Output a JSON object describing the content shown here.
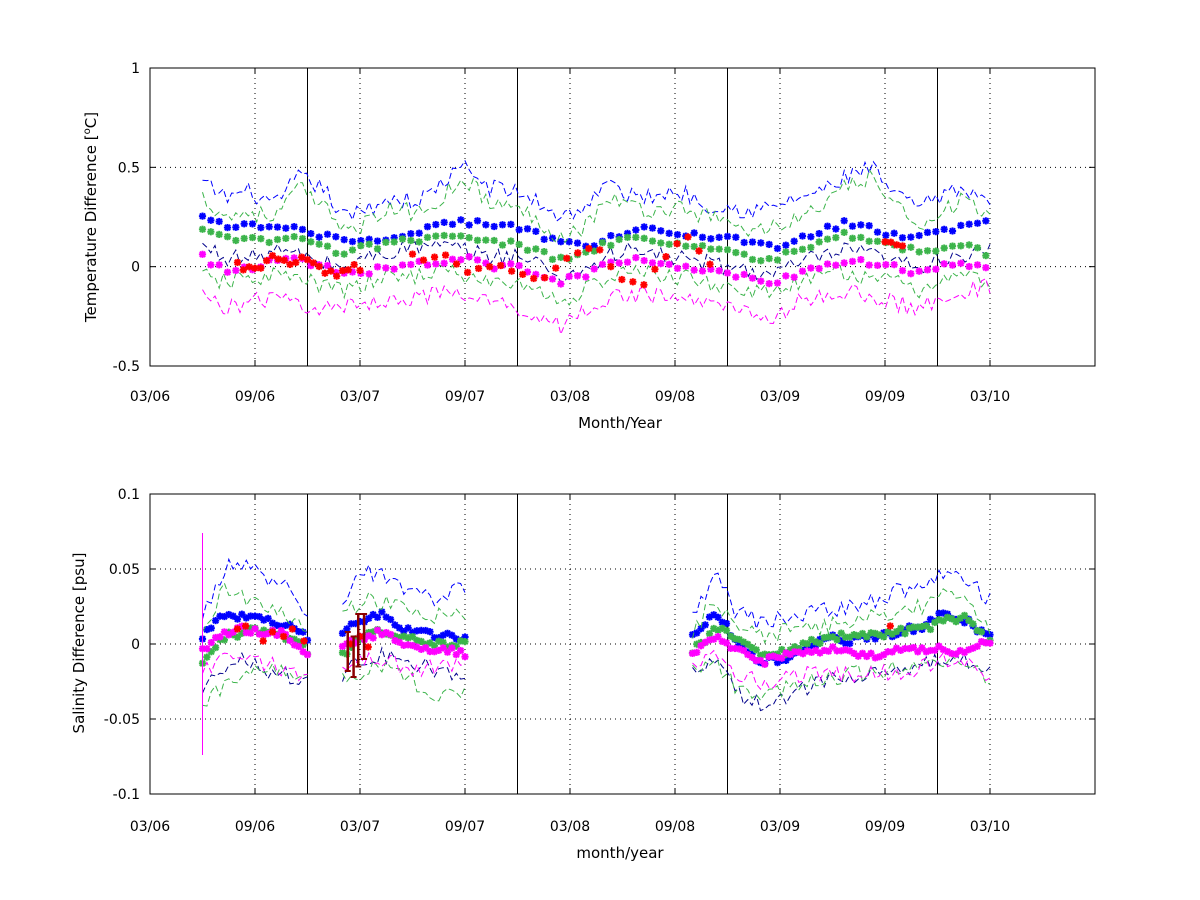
{
  "chart_data": [
    {
      "type": "scatter",
      "title": "",
      "xlabel": "Month/Year",
      "ylabel_parts": {
        "pre": "Temperature Difference [",
        "sup": "o",
        "post": "C]"
      },
      "xlim": [
        "2006-03",
        "2010-09"
      ],
      "ylim": [
        -0.5,
        1
      ],
      "xtick_labels": [
        "03/06",
        "09/06",
        "03/07",
        "09/07",
        "03/08",
        "09/08",
        "03/09",
        "09/09",
        "03/10"
      ],
      "ytick_labels": [
        "-0.5",
        "0",
        "0.5",
        "1"
      ],
      "grid": true,
      "year_dividers": [
        "2006-12",
        "2007-12",
        "2008-12",
        "2009-12"
      ],
      "x_start": "2006-06-01",
      "x_end": "2010-03-01",
      "series": [
        {
          "color": "#0000ff",
          "style": "markers",
          "values_anchor": [
            0.25,
            0.2,
            0.22,
            0.18,
            0.2,
            0.15,
            0.14,
            0.13,
            0.16,
            0.17,
            0.22,
            0.23,
            0.2,
            0.21,
            0.16,
            0.12,
            0.1,
            0.15,
            0.18,
            0.2,
            0.17,
            0.15,
            0.15,
            0.12,
            0.1,
            0.15,
            0.18,
            0.22,
            0.2,
            0.16,
            0.15,
            0.18,
            0.2,
            0.22
          ]
        },
        {
          "color": "#0000ff",
          "style": "dashed",
          "values_anchor": [
            0.42,
            0.35,
            0.38,
            0.3,
            0.45,
            0.4,
            0.24,
            0.3,
            0.35,
            0.32,
            0.42,
            0.5,
            0.4,
            0.38,
            0.33,
            0.25,
            0.3,
            0.42,
            0.35,
            0.36,
            0.38,
            0.32,
            0.3,
            0.28,
            0.3,
            0.35,
            0.38,
            0.45,
            0.5,
            0.36,
            0.3,
            0.35,
            0.4,
            0.32
          ]
        },
        {
          "color": "#00008b",
          "style": "dashed",
          "values_anchor": [
            0.1,
            0.05,
            0.04,
            0.08,
            0.06,
            0.02,
            0.0,
            0.05,
            0.08,
            0.1,
            0.1,
            0.08,
            0.05,
            0.06,
            0.02,
            -0.05,
            -0.02,
            0.06,
            0.08,
            0.06,
            0.04,
            0.02,
            0.0,
            -0.02,
            -0.04,
            0.02,
            0.05,
            0.08,
            0.06,
            0.02,
            0.0,
            0.05,
            0.06,
            0.08
          ]
        },
        {
          "color": "#3cb44b",
          "style": "markers",
          "values_anchor": [
            0.18,
            0.14,
            0.14,
            0.12,
            0.15,
            0.09,
            0.08,
            0.1,
            0.12,
            0.14,
            0.16,
            0.15,
            0.12,
            0.12,
            0.08,
            0.03,
            0.06,
            0.12,
            0.14,
            0.13,
            0.11,
            0.09,
            0.08,
            0.05,
            0.04,
            0.08,
            0.12,
            0.16,
            0.13,
            0.1,
            0.08,
            0.1,
            0.12,
            0.06
          ]
        },
        {
          "color": "#3cb44b",
          "style": "dashed",
          "values_anchor": [
            0.35,
            0.25,
            0.28,
            0.24,
            0.4,
            0.3,
            0.2,
            0.22,
            0.3,
            0.26,
            0.35,
            0.45,
            0.32,
            0.3,
            0.24,
            0.15,
            0.2,
            0.35,
            0.3,
            0.28,
            0.3,
            0.26,
            0.22,
            0.18,
            0.2,
            0.25,
            0.3,
            0.4,
            0.45,
            0.3,
            0.22,
            0.28,
            0.34,
            0.24
          ]
        },
        {
          "color": "#3cb44b",
          "style": "dashed",
          "values_anchor": [
            -0.05,
            -0.08,
            -0.06,
            -0.04,
            -0.06,
            -0.1,
            -0.12,
            -0.08,
            -0.05,
            -0.04,
            -0.02,
            -0.05,
            -0.08,
            -0.08,
            -0.12,
            -0.18,
            -0.12,
            -0.05,
            -0.03,
            -0.04,
            -0.05,
            -0.08,
            -0.1,
            -0.12,
            -0.14,
            -0.08,
            -0.05,
            -0.02,
            -0.06,
            -0.08,
            -0.12,
            -0.06,
            -0.05,
            -0.08
          ]
        },
        {
          "color": "#ff00ff",
          "style": "markers",
          "values_anchor": [
            0.05,
            -0.02,
            0.0,
            0.02,
            0.04,
            0.0,
            -0.04,
            -0.02,
            0.0,
            0.02,
            0.02,
            0.04,
            0.0,
            0.0,
            -0.04,
            -0.08,
            -0.04,
            0.02,
            0.03,
            0.02,
            0.0,
            -0.02,
            -0.04,
            -0.06,
            -0.08,
            -0.03,
            0.0,
            0.04,
            0.02,
            0.0,
            -0.04,
            0.0,
            0.02,
            0.0
          ]
        },
        {
          "color": "#ff00ff",
          "style": "dashed",
          "values_anchor": [
            -0.15,
            -0.2,
            -0.18,
            -0.16,
            -0.18,
            -0.22,
            -0.2,
            -0.18,
            -0.16,
            -0.15,
            -0.14,
            -0.15,
            -0.18,
            -0.2,
            -0.24,
            -0.3,
            -0.22,
            -0.16,
            -0.14,
            -0.15,
            -0.16,
            -0.18,
            -0.2,
            -0.22,
            -0.26,
            -0.18,
            -0.15,
            -0.12,
            -0.16,
            -0.18,
            -0.22,
            -0.14,
            -0.12,
            -0.1
          ]
        },
        {
          "color": "#ff0000",
          "style": "markers",
          "t_range": [
            "2006-08-01",
            "2007-03-01"
          ],
          "values_anchor": [
            0.0,
            -0.02,
            0.02,
            0.04,
            0.0,
            0.02,
            0.04,
            -0.02,
            -0.04,
            -0.02,
            0.0
          ]
        },
        {
          "color": "#ff0000",
          "style": "markers",
          "t_range": [
            "2007-06-01",
            "2008-11-01"
          ],
          "values_anchor": [
            0.04,
            0.06,
            0.0,
            -0.02,
            0.02,
            -0.06,
            -0.04,
            0.06,
            0.1,
            -0.06,
            -0.12,
            0.04,
            0.14,
            0.02
          ]
        },
        {
          "color": "#ff0000",
          "style": "markers",
          "t_range": [
            "2009-09-01",
            "2009-10-01"
          ],
          "values_anchor": [
            0.1,
            0.1
          ]
        }
      ]
    },
    {
      "type": "scatter",
      "title": "",
      "xlabel": "month/year",
      "ylabel": "Salinity Difference [psu]",
      "xlim": [
        "2006-03",
        "2010-09"
      ],
      "ylim": [
        -0.1,
        0.1
      ],
      "xtick_labels": [
        "03/06",
        "09/06",
        "03/07",
        "09/07",
        "03/08",
        "09/08",
        "03/09",
        "09/09",
        "03/10"
      ],
      "ytick_labels": [
        "-0.1",
        "-0.05",
        "0",
        "0.05",
        "0.1"
      ],
      "grid": true,
      "year_dividers": [
        "2006-12",
        "2007-12",
        "2008-12",
        "2009-12"
      ],
      "segments": [
        [
          "2006-06-01",
          "2006-12-01"
        ],
        [
          "2007-02-01",
          "2007-09-01"
        ],
        [
          "2008-10-01",
          "2010-03-01"
        ]
      ],
      "series": [
        {
          "color": "#0000ff",
          "style": "markers",
          "segment_values": [
            [
              0.005,
              0.02,
              0.018,
              0.015,
              0.012,
              0.005
            ],
            [
              0.008,
              0.015,
              0.02,
              0.01,
              0.008,
              0.005,
              0.004
            ],
            [
              0.005,
              0.022,
              0.0,
              -0.012,
              -0.01,
              -0.002,
              0.004,
              0.002,
              0.005,
              0.008,
              0.012,
              0.02,
              0.015,
              0.005
            ]
          ]
        },
        {
          "color": "#0000ff",
          "style": "dashed",
          "segment_values": [
            [
              0.02,
              0.05,
              0.052,
              0.045,
              0.04,
              0.02
            ],
            [
              0.03,
              0.048,
              0.045,
              0.035,
              0.032,
              0.03,
              0.04
            ],
            [
              0.02,
              0.045,
              0.02,
              0.015,
              0.018,
              0.02,
              0.022,
              0.025,
              0.03,
              0.035,
              0.04,
              0.05,
              0.045,
              0.03
            ]
          ]
        },
        {
          "color": "#00008b",
          "style": "dashed",
          "segment_values": [
            [
              -0.03,
              -0.015,
              -0.01,
              -0.018,
              -0.02,
              -0.025
            ],
            [
              -0.02,
              -0.012,
              -0.008,
              -0.012,
              -0.015,
              -0.018,
              -0.022
            ],
            [
              -0.015,
              -0.01,
              -0.035,
              -0.04,
              -0.035,
              -0.03,
              -0.025,
              -0.022,
              -0.02,
              -0.018,
              -0.015,
              -0.01,
              -0.012,
              -0.02
            ]
          ]
        },
        {
          "color": "#3cb44b",
          "style": "markers",
          "segment_values": [
            [
              -0.012,
              0.005,
              0.008,
              0.01,
              0.005,
              -0.005
            ],
            [
              -0.008,
              0.006,
              0.01,
              0.004,
              0.002,
              0.0,
              0.0
            ],
            [
              -0.005,
              0.01,
              0.005,
              -0.008,
              -0.005,
              0.0,
              0.005,
              0.005,
              0.006,
              0.008,
              0.01,
              0.015,
              0.018,
              0.0
            ]
          ]
        },
        {
          "color": "#3cb44b",
          "style": "dashed",
          "segment_values": [
            [
              0.01,
              0.035,
              0.03,
              0.025,
              0.02,
              0.008
            ],
            [
              0.018,
              0.03,
              0.028,
              0.022,
              0.02,
              0.018,
              0.02
            ],
            [
              0.008,
              0.03,
              0.01,
              0.005,
              0.008,
              0.01,
              0.012,
              0.015,
              0.02,
              0.022,
              0.025,
              0.032,
              0.03,
              0.012
            ]
          ]
        },
        {
          "color": "#3cb44b",
          "style": "dashed",
          "segment_values": [
            [
              -0.04,
              -0.03,
              -0.02,
              -0.015,
              -0.02,
              -0.025
            ],
            [
              -0.022,
              -0.018,
              -0.014,
              -0.02,
              -0.03,
              -0.035,
              -0.03
            ],
            [
              -0.02,
              -0.015,
              -0.03,
              -0.035,
              -0.03,
              -0.025,
              -0.022,
              -0.02,
              -0.018,
              -0.015,
              -0.01,
              -0.012,
              -0.015,
              -0.022
            ]
          ]
        },
        {
          "color": "#ff00ff",
          "style": "markers",
          "segment_values": [
            [
              -0.003,
              0.006,
              0.01,
              0.008,
              0.006,
              -0.006
            ],
            [
              -0.002,
              0.004,
              0.008,
              0.0,
              -0.002,
              -0.004,
              -0.006
            ],
            [
              -0.008,
              0.005,
              -0.005,
              -0.012,
              -0.008,
              -0.005,
              -0.004,
              -0.006,
              -0.008,
              -0.005,
              -0.003,
              -0.004,
              -0.005,
              0.002
            ]
          ]
        },
        {
          "color": "#ff00ff",
          "style": "dashed",
          "segment_values": [
            [
              -0.02,
              -0.01,
              -0.01,
              -0.012,
              -0.018,
              -0.022
            ],
            [
              -0.015,
              -0.01,
              -0.012,
              -0.015,
              -0.016,
              -0.014,
              -0.012
            ],
            [
              -0.015,
              -0.008,
              -0.02,
              -0.025,
              -0.022,
              -0.02,
              -0.022,
              -0.02,
              -0.018,
              -0.02,
              -0.015,
              -0.01,
              -0.012,
              -0.02
            ]
          ]
        },
        {
          "color": "#ff00ff",
          "style": "vertical_line",
          "t": "2006-06-01",
          "range": [
            -0.074,
            0.074
          ]
        },
        {
          "color": "#ff0000",
          "style": "markers",
          "points": [
            [
              "2006-08-01",
              0.01
            ],
            [
              "2006-08-15",
              0.012
            ],
            [
              "2006-09-15",
              0.002
            ],
            [
              "2006-10-01",
              0.008
            ],
            [
              "2006-10-20",
              0.005
            ],
            [
              "2006-11-05",
              0.01
            ],
            [
              "2006-11-25",
              0.002
            ],
            [
              "2007-02-15",
              0.0
            ],
            [
              "2007-03-01",
              0.005
            ],
            [
              "2007-03-15",
              -0.002
            ],
            [
              "2009-09-10",
              0.012
            ]
          ]
        },
        {
          "color": "#8b0000",
          "style": "error_bars",
          "bars": [
            [
              "2007-02-10",
              0.008,
              -0.018
            ],
            [
              "2007-02-20",
              0.005,
              -0.022
            ],
            [
              "2007-02-28",
              0.02,
              -0.015
            ],
            [
              "2007-03-08",
              0.02,
              -0.01
            ]
          ]
        }
      ]
    }
  ]
}
